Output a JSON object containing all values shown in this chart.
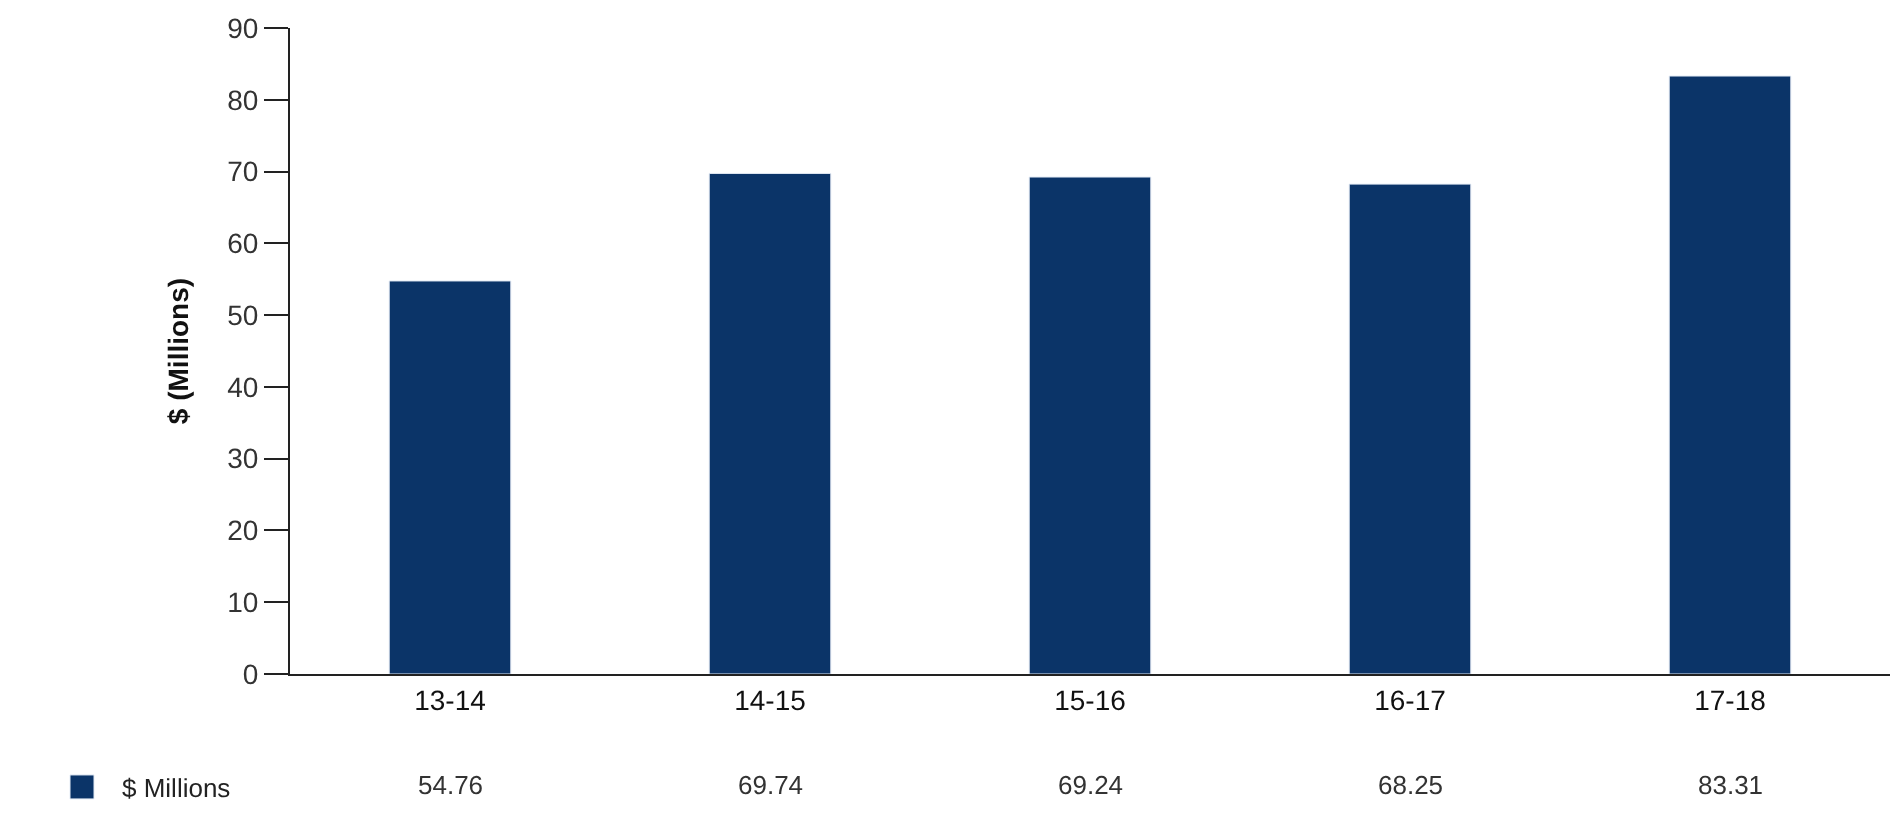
{
  "chart_data": {
    "type": "bar",
    "ylabel": "$ (Millions)",
    "categories": [
      "13-14",
      "14-15",
      "15-16",
      "16-17",
      "17-18"
    ],
    "series": [
      {
        "name": "$ Millions",
        "color": "#0b3468",
        "values": [
          54.76,
          69.74,
          69.24,
          68.25,
          83.31
        ]
      }
    ],
    "ylim": [
      0,
      90
    ],
    "yticks": [
      0,
      10,
      20,
      30,
      40,
      50,
      60,
      70,
      80,
      90
    ],
    "legend": "bottom left",
    "data_labels": true
  }
}
